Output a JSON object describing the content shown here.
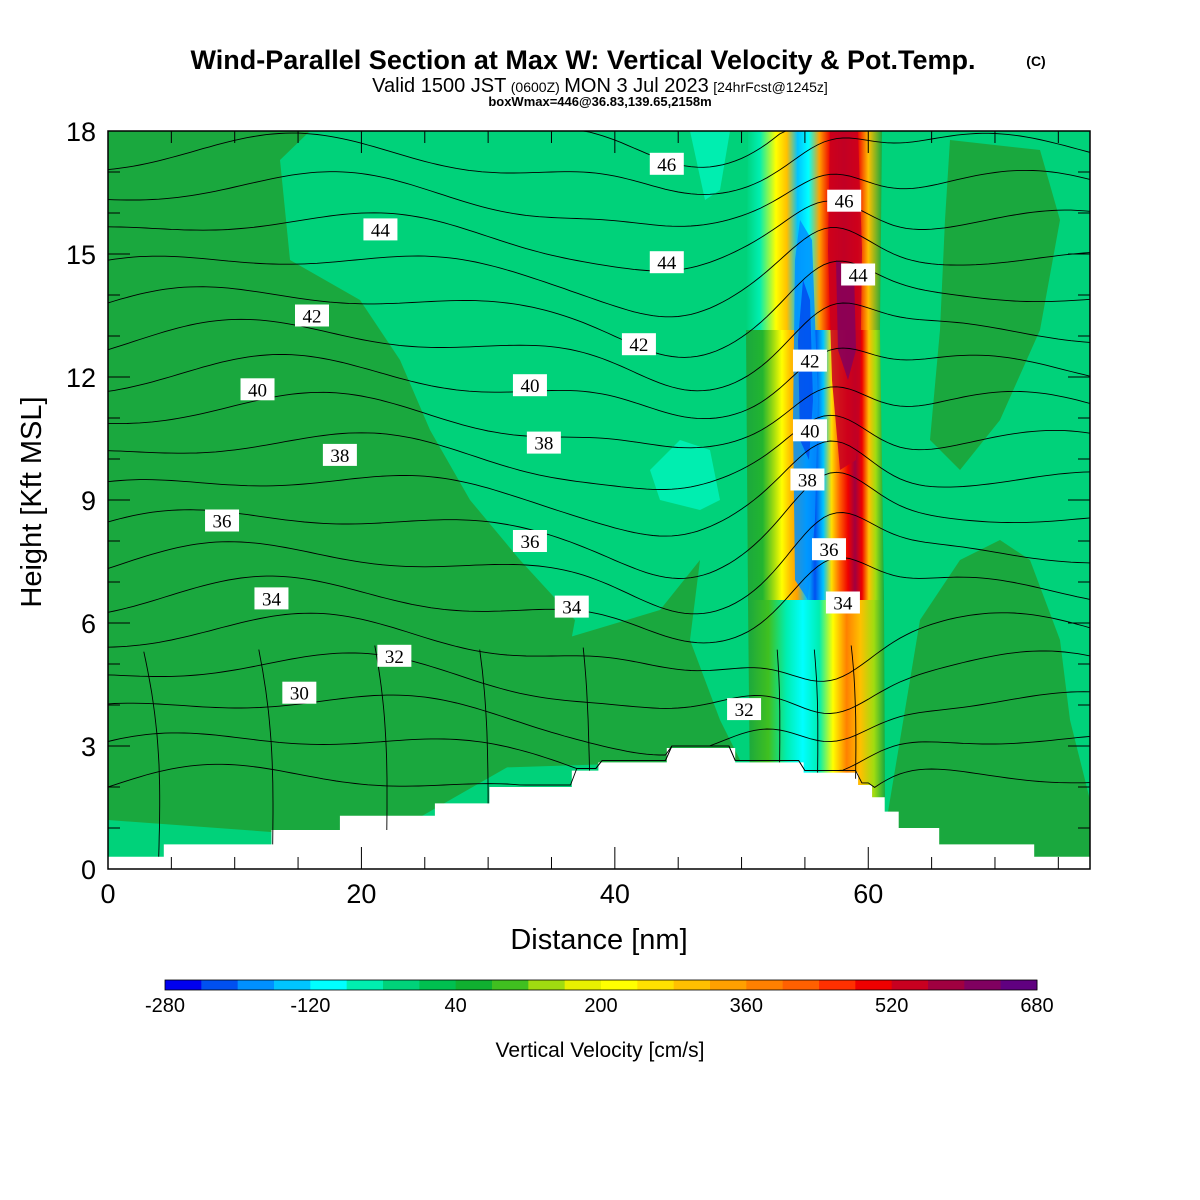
{
  "title": {
    "main": "Wind-Parallel Section at Max W: Vertical Velocity & Pot.Temp.",
    "copyright": "(C)",
    "line2_a": "Valid 1500 JST",
    "line2_b": "(0600Z)",
    "line2_c": "MON 3 Jul 2023",
    "line2_d": "[24hrFcst@1245z]",
    "line3": "boxWmax=446@36.83,139.65,2158m"
  },
  "chart_data": {
    "type": "heatmap",
    "title": "Wind-Parallel Section at Max W: Vertical Velocity & Pot.Temp.",
    "xlabel": "Distance [nm]",
    "ylabel": "Height [Kft MSL]",
    "xlim": [
      0,
      77.5
    ],
    "ylim": [
      0,
      18
    ],
    "x_ticks": [
      0,
      20,
      40,
      60
    ],
    "y_ticks": [
      0,
      3,
      6,
      9,
      12,
      15,
      18
    ],
    "x_tick_labels": [
      "0",
      "20",
      "40",
      "60"
    ],
    "y_tick_labels": [
      "0",
      "3",
      "6",
      "9",
      "12",
      "15",
      "18"
    ],
    "colorbar": {
      "title": "Vertical Velocity [cm/s]",
      "levels": [
        -280,
        -240,
        -200,
        -160,
        -120,
        -80,
        -40,
        0,
        40,
        80,
        120,
        160,
        200,
        240,
        280,
        320,
        360,
        400,
        440,
        480,
        520,
        560,
        600,
        640,
        680
      ],
      "tick_labels": [
        "-280",
        "-120",
        "40",
        "200",
        "360",
        "520",
        "680"
      ],
      "tick_values": [
        -280,
        -120,
        40,
        200,
        360,
        520,
        680
      ],
      "colors": [
        "#0000ee",
        "#0050f0",
        "#0090ff",
        "#00c4ff",
        "#00ffff",
        "#00eeb0",
        "#00d27a",
        "#00c050",
        "#10b030",
        "#40c020",
        "#a0dc10",
        "#e8f000",
        "#ffff00",
        "#ffe000",
        "#ffc000",
        "#ffa000",
        "#ff8000",
        "#ff6000",
        "#ff3000",
        "#ee0000",
        "#c80020",
        "#a00040",
        "#800060",
        "#600080"
      ]
    },
    "terrain_kft": [
      [
        0,
        0.3
      ],
      [
        4.4,
        0.3
      ],
      [
        4.4,
        0.6
      ],
      [
        12.9,
        0.6
      ],
      [
        12.9,
        0.95
      ],
      [
        18.3,
        0.95
      ],
      [
        18.3,
        1.3
      ],
      [
        25.8,
        1.3
      ],
      [
        25.8,
        1.6
      ],
      [
        30.1,
        1.6
      ],
      [
        30.1,
        2.0
      ],
      [
        36.6,
        2.0
      ],
      [
        36.6,
        2.4
      ],
      [
        38.7,
        2.4
      ],
      [
        38.7,
        2.6
      ],
      [
        44.1,
        2.6
      ],
      [
        44.1,
        2.95
      ],
      [
        49.5,
        2.95
      ],
      [
        49.5,
        2.6
      ],
      [
        54.9,
        2.6
      ],
      [
        54.9,
        2.35
      ],
      [
        59.2,
        2.35
      ],
      [
        59.2,
        2.05
      ],
      [
        60.3,
        2.05
      ],
      [
        60.3,
        1.75
      ],
      [
        61.3,
        1.75
      ],
      [
        61.3,
        1.4
      ],
      [
        62.4,
        1.4
      ],
      [
        62.4,
        1.0
      ],
      [
        65.6,
        1.0
      ],
      [
        65.6,
        0.6
      ],
      [
        73.1,
        0.6
      ],
      [
        73.1,
        0.3
      ],
      [
        77.5,
        0.3
      ]
    ],
    "theta_label_units": "degrees (theta contour labels as printed)",
    "theta_contours": [
      {
        "label": "30",
        "at": [
          [
            15.1,
            4.3
          ]
        ]
      },
      {
        "label": "32",
        "at": [
          [
            22.6,
            5.2
          ],
          [
            50.2,
            3.9
          ]
        ]
      },
      {
        "label": "34",
        "at": [
          [
            12.9,
            6.6
          ],
          [
            36.6,
            6.4
          ],
          [
            58.0,
            6.5
          ]
        ]
      },
      {
        "label": "36",
        "at": [
          [
            9.0,
            8.5
          ],
          [
            33.3,
            8.0
          ],
          [
            56.9,
            7.8
          ]
        ]
      },
      {
        "label": "38",
        "at": [
          [
            18.3,
            10.1
          ],
          [
            34.4,
            10.4
          ],
          [
            55.2,
            9.5
          ]
        ]
      },
      {
        "label": "40",
        "at": [
          [
            11.8,
            11.7
          ],
          [
            33.3,
            11.8
          ],
          [
            55.4,
            10.7
          ]
        ]
      },
      {
        "label": "42",
        "at": [
          [
            16.1,
            13.5
          ],
          [
            41.9,
            12.8
          ],
          [
            55.4,
            12.4
          ]
        ]
      },
      {
        "label": "44",
        "at": [
          [
            21.5,
            15.6
          ],
          [
            44.1,
            14.8
          ],
          [
            59.2,
            14.5
          ]
        ]
      },
      {
        "label": "46",
        "at": [
          [
            44.1,
            17.2
          ],
          [
            58.1,
            16.3
          ]
        ]
      }
    ]
  }
}
